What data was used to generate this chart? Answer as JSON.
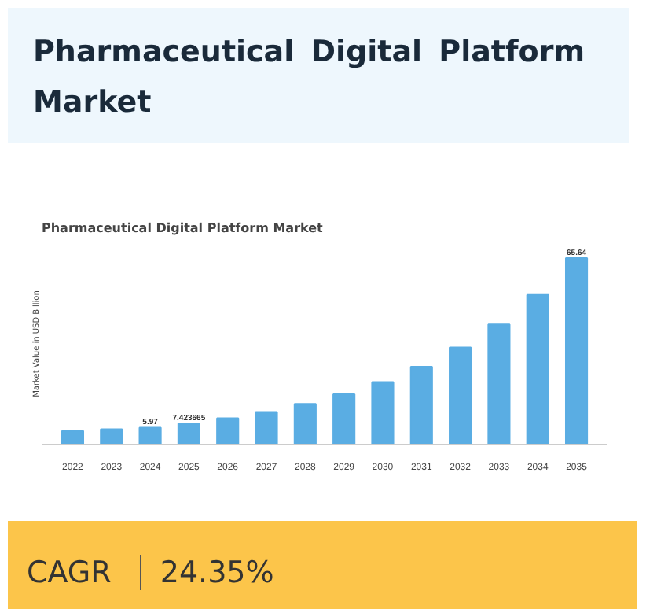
{
  "chart_data": {
    "type": "bar",
    "title": "Pharmaceutical Digital Platform Market",
    "subtitle": "Pharmaceutical Digital Platform Market",
    "ylabel": "Market Value in USD Billion",
    "categories": [
      "2022",
      "2023",
      "2024",
      "2025",
      "2026",
      "2027",
      "2028",
      "2029",
      "2030",
      "2031",
      "2032",
      "2033",
      "2034",
      "2035"
    ],
    "values": [
      4.8,
      5.4,
      5.97,
      7.423665,
      9.3,
      11.5,
      14.3,
      17.7,
      22.0,
      27.4,
      34.2,
      42.3,
      52.7,
      65.64
    ],
    "value_labels": [
      null,
      null,
      "5.97",
      "7.423665",
      null,
      null,
      null,
      null,
      null,
      null,
      null,
      null,
      null,
      "65.64"
    ],
    "color": "#5aade3",
    "grid": false,
    "annotations": [
      "CAGR",
      "24.35%"
    ]
  }
}
